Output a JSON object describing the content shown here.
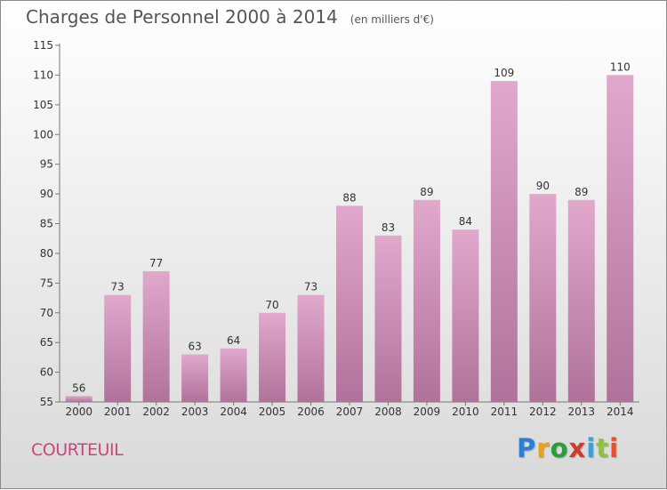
{
  "header": {
    "title": "Charges de Personnel 2000 à 2014",
    "unit": "(en milliers d'€)"
  },
  "commune": "COURTEUIL",
  "logo": {
    "letters": [
      "P",
      "r",
      "o",
      "x",
      "i",
      "t",
      "i"
    ]
  },
  "colors": {
    "bar_top": "#e2a8cc",
    "bar_bottom": "#b0729a",
    "commune_text": "#c8487a"
  },
  "chart_data": {
    "type": "bar",
    "title": "Charges de Personnel 2000 à 2014",
    "subtitle": "(en milliers d'€)",
    "categories": [
      "2000",
      "2001",
      "2002",
      "2003",
      "2004",
      "2005",
      "2006",
      "2007",
      "2008",
      "2009",
      "2010",
      "2011",
      "2012",
      "2013",
      "2014"
    ],
    "values": [
      56,
      73,
      77,
      63,
      64,
      70,
      73,
      88,
      83,
      89,
      84,
      109,
      90,
      89,
      110
    ],
    "ylim": [
      55,
      115
    ],
    "yticks": [
      55,
      60,
      65,
      70,
      75,
      80,
      85,
      90,
      95,
      100,
      105,
      110,
      115
    ],
    "grid": false,
    "legend": "none"
  }
}
